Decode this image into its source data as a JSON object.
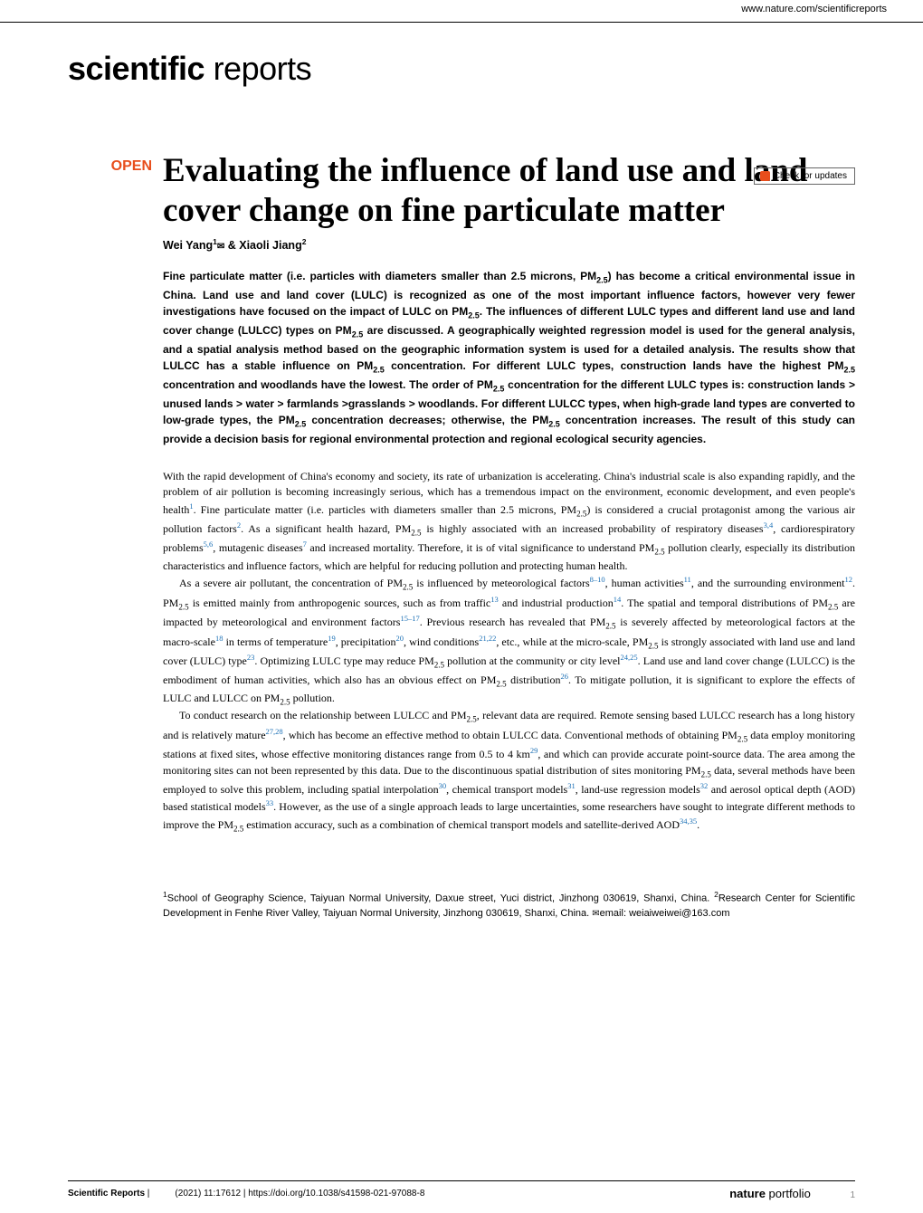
{
  "header_url": "www.nature.com/scientificreports",
  "journal_name_bold": "scientific",
  "journal_name_light": " reports",
  "updates_text": "Check for updates",
  "open_access": "OPEN",
  "title": "Evaluating the influence of land use and land cover change on fine particulate matter",
  "author1": "Wei Yang",
  "author1_sup": "1",
  "author_sep": " & ",
  "author2": "Xiaoli Jiang",
  "author2_sup": "2",
  "abstract_p1": "Fine particulate matter (i.e. particles with diameters smaller than 2.5 microns, PM",
  "abstract_p2": ") has become a critical environmental issue in China. Land use and land cover (LULC) is recognized as one of the most important influence factors, however very fewer investigations have focused on the impact of LULC on PM",
  "abstract_p3": ". The influences of different LULC types and different land use and land cover change (LULCC) types on PM",
  "abstract_p4": " are discussed. A geographically weighted regression model is used for the general analysis, and a spatial analysis method based on the geographic information system is used for a detailed analysis. The results show that LULCC has a stable influence on PM",
  "abstract_p5": " concentration. For different LULC types, construction lands have the highest PM",
  "abstract_p6": " concentration and woodlands have the lowest. The order of PM",
  "abstract_p7": " concentration for the different LULC types is: construction lands > unused lands > water > farmlands >grasslands > woodlands. For different LULCC types, when high-grade land types are converted to low-grade types, the PM",
  "abstract_p8": " concentration decreases; otherwise, the PM",
  "abstract_p9": " concentration increases. The result of this study can provide a decision basis for regional environmental protection and regional ecological security agencies.",
  "sub25": "2.5",
  "body1_a": "With the rapid development of China's economy and society, its rate of urbanization is accelerating. China's industrial scale is also expanding rapidly, and the problem of air pollution is becoming increasingly serious, which has a tremendous impact on the environment, economic development, and even people's health",
  "body1_b": ". Fine particulate matter (i.e. particles with diameters smaller than 2.5 microns, PM",
  "body1_c": ") is considered a crucial protagonist among the various air pollution factors",
  "body1_d": ". As a significant health hazard, PM",
  "body1_e": " is highly associated with an increased probability of respiratory diseases",
  "body1_f": ", cardiorespiratory problems",
  "body1_g": ", mutagenic diseases",
  "body1_h": " and increased mortality. Therefore, it is of vital significance to understand PM",
  "body1_i": " pollution clearly, especially its distribution characteristics and influence factors, which are helpful for reducing pollution and protecting human health.",
  "body2_a": "As a severe air pollutant, the concentration of PM",
  "body2_b": " is influenced by meteorological factors",
  "body2_c": ", human activities",
  "body2_d": ", and the surrounding environment",
  "body2_e": ". PM",
  "body2_f": " is emitted mainly from anthropogenic sources, such as from traffic",
  "body2_g": " and industrial production",
  "body2_h": ". The spatial and temporal distributions of PM",
  "body2_i": " are impacted by meteorological and environment factors",
  "body2_j": ". Previous research has revealed that PM",
  "body2_k": " is severely affected by meteorological factors at the macro-scale",
  "body2_l": " in terms of temperature",
  "body2_m": ", precipitation",
  "body2_n": ", wind conditions",
  "body2_o": ", etc., while at the micro-scale, PM",
  "body2_p": " is strongly associated with land use and land cover (LULC) type",
  "body2_q": ". Optimizing LULC type may reduce PM",
  "body2_r": " pollution at the community or city level",
  "body2_s": ". Land use and land cover change (LULCC) is the embodiment of human activities, which also has an obvious effect on PM",
  "body2_t": " distribution",
  "body2_u": ". To mitigate pollution, it is significant to explore the effects of LULC and LULCC on PM",
  "body2_v": " pollution.",
  "body3_a": "To conduct research on the relationship between LULCC and PM",
  "body3_b": " relevant data are required. Remote sensing based LULCC research has a long history and is relatively mature",
  "body3_c": ", which has become an effective method to obtain LULCC data. Conventional methods of obtaining PM",
  "body3_d": " data employ monitoring stations at fixed sites, whose effective monitoring distances range from 0.5 to 4 km",
  "body3_e": ", and which can provide accurate point-source data. The area among the monitoring sites can not been represented by this data. Due to the discontinuous spatial distribution of sites monitoring PM",
  "body3_f": " data, several methods have been employed to solve this problem, including spatial interpolation",
  "body3_g": ", chemical transport models",
  "body3_h": ", land-use regression models",
  "body3_i": " and aerosol optical depth (AOD) based statistical models",
  "body3_j": ". However, as the use of a single approach leads to large uncertainties, some researchers have sought to integrate different methods to improve the PM",
  "body3_k": " estimation accuracy, such as a combination of chemical transport models and satellite-derived AOD",
  "body3_l": ".",
  "refs": {
    "r1": "1",
    "r2": "2",
    "r34": "3,4",
    "r56": "5,6",
    "r7": "7",
    "r810": "8–10",
    "r11": "11",
    "r12": "12",
    "r13": "13",
    "r14": "14",
    "r1517": "15–17",
    "r18": "18",
    "r19": "19",
    "r20": "20",
    "r2122": "21,22",
    "r23": "23",
    "r2425": "24,25",
    "r26": "26",
    "r2728": "27,28",
    "r29": "29",
    "r30": "30",
    "r31": "31",
    "r32": "32",
    "r33": "33",
    "r3435": "34,35"
  },
  "affil_sup1": "1",
  "affil_1": "School of Geography Science, Taiyuan Normal University, Daxue street, Yuci district, Jinzhong 030619, Shanxi, China. ",
  "affil_sup2": "2",
  "affil_2": "Research Center for Scientific Development in Fenhe River Valley, Taiyuan Normal University, Jinzhong 030619, Shanxi, China. ",
  "affil_email_label": "email: ",
  "affil_email": "weiaiweiwei@163.com",
  "footer_journal": "Scientific Reports",
  "footer_sep": " |",
  "footer_citation": "(2021) 11:17612",
  "footer_doi_sep": " | ",
  "footer_doi": "https://doi.org/10.1038/s41598-021-97088-8",
  "footer_portfolio_bold": "nature",
  "footer_portfolio_light": " portfolio",
  "page_num": "1",
  "colors": {
    "accent": "#e84e1c",
    "link": "#1a6fb5",
    "text": "#000000",
    "bg": "#ffffff",
    "muted": "#888888"
  }
}
